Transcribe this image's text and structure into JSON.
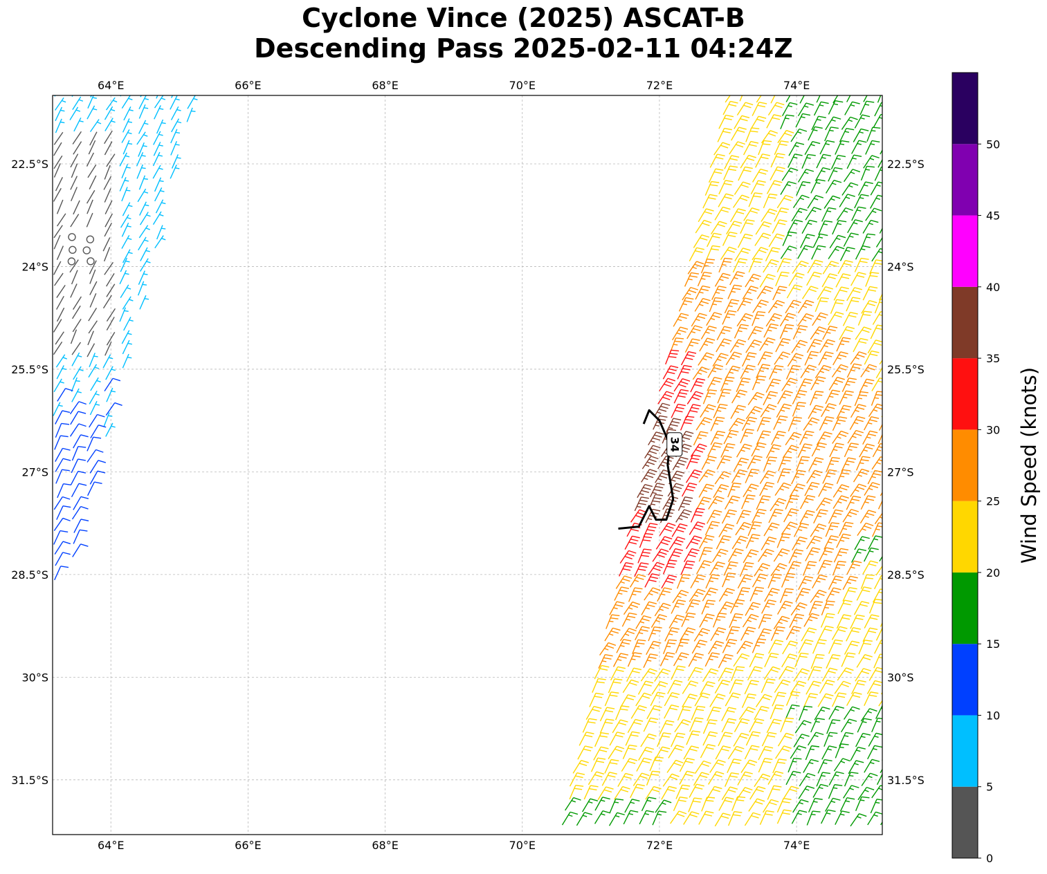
{
  "title": {
    "line1": "Cyclone Vince (2025) ASCAT-B",
    "line2": "Descending Pass 2025-02-11 04:24Z"
  },
  "map": {
    "lon_range": [
      63.15,
      75.25
    ],
    "lat_range": [
      -32.3,
      -21.5
    ],
    "lon_ticks": [
      {
        "value": 64,
        "label": "64°E"
      },
      {
        "value": 66,
        "label": "66°E"
      },
      {
        "value": 68,
        "label": "68°E"
      },
      {
        "value": 70,
        "label": "70°E"
      },
      {
        "value": 72,
        "label": "72°E"
      },
      {
        "value": 74,
        "label": "74°E"
      }
    ],
    "lat_ticks": [
      {
        "value": -22.5,
        "label": "22.5°S"
      },
      {
        "value": -24,
        "label": "24°S"
      },
      {
        "value": -25.5,
        "label": "25.5°S"
      },
      {
        "value": -27,
        "label": "27°S"
      },
      {
        "value": -28.5,
        "label": "28.5°S"
      },
      {
        "value": -30,
        "label": "30°S"
      },
      {
        "value": -31.5,
        "label": "31.5°S"
      }
    ],
    "gridlines": true,
    "contour": {
      "level_label": "34",
      "color": "#000000",
      "points": [
        [
          71.77,
          -26.3
        ],
        [
          71.85,
          -26.1
        ],
        [
          72.0,
          -26.25
        ],
        [
          72.15,
          -26.6
        ],
        [
          72.12,
          -26.9
        ],
        [
          72.2,
          -27.4
        ],
        [
          72.1,
          -27.7
        ],
        [
          71.95,
          -27.7
        ],
        [
          71.85,
          -27.5
        ],
        [
          71.7,
          -27.8
        ],
        [
          71.4,
          -27.83
        ]
      ]
    },
    "swaths": [
      {
        "name": "west-swath",
        "region": "63.15-65.3E, 21.5-28.7S"
      },
      {
        "name": "east-swath",
        "region": "70.5-75.25E, 21.5-32.3S"
      }
    ]
  },
  "colorbar": {
    "label": "Wind Speed (knots)",
    "bins": [
      {
        "from": 0,
        "to": 5,
        "color": "#555555"
      },
      {
        "from": 5,
        "to": 10,
        "color": "#00bfff"
      },
      {
        "from": 10,
        "to": 15,
        "color": "#0040ff"
      },
      {
        "from": 15,
        "to": 20,
        "color": "#009900"
      },
      {
        "from": 20,
        "to": 25,
        "color": "#ffd700"
      },
      {
        "from": 25,
        "to": 30,
        "color": "#ff8c00"
      },
      {
        "from": 30,
        "to": 35,
        "color": "#ff1010"
      },
      {
        "from": 35,
        "to": 40,
        "color": "#7f3a28"
      },
      {
        "from": 40,
        "to": 45,
        "color": "#ff00ff"
      },
      {
        "from": 45,
        "to": 50,
        "color": "#8000b0"
      },
      {
        "from": 50,
        "to": 55,
        "color": "#2a0060"
      }
    ],
    "tick_labels": [
      "0",
      "5",
      "10",
      "15",
      "20",
      "25",
      "30",
      "35",
      "40",
      "45",
      "50"
    ]
  }
}
